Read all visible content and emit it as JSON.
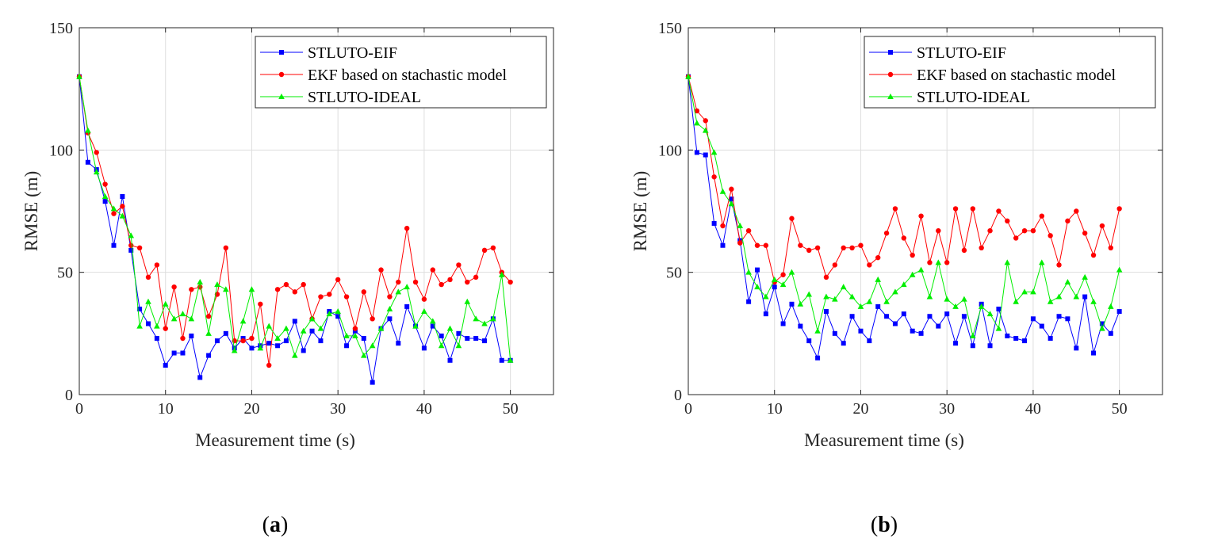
{
  "chart_data": [
    {
      "type": "line",
      "caption_letter": "a",
      "xlabel": "Measurement time (s)",
      "ylabel": "RMSE (m)",
      "xlim": [
        0,
        55
      ],
      "ylim": [
        0,
        150
      ],
      "xticks": [
        0,
        10,
        20,
        30,
        40,
        50
      ],
      "yticks": [
        0,
        50,
        100,
        150
      ],
      "grid": true,
      "legend_position": "top-right",
      "series": [
        {
          "name": "STLUTO-EIF",
          "color": "#0000ff",
          "marker": "square",
          "x": [
            0,
            1,
            2,
            3,
            4,
            5,
            6,
            7,
            8,
            9,
            10,
            11,
            12,
            13,
            14,
            15,
            16,
            17,
            18,
            19,
            20,
            21,
            22,
            23,
            24,
            25,
            26,
            27,
            28,
            29,
            30,
            31,
            32,
            33,
            34,
            35,
            36,
            37,
            38,
            39,
            40,
            41,
            42,
            43,
            44,
            45,
            46,
            47,
            48,
            49,
            50
          ],
          "values": [
            130,
            95,
            92,
            79,
            61,
            81,
            59,
            35,
            29,
            23,
            12,
            17,
            17,
            24,
            7,
            16,
            22,
            25,
            19,
            23,
            19,
            20,
            21,
            20,
            22,
            30,
            18,
            26,
            22,
            34,
            32,
            20,
            26,
            23,
            5,
            27,
            31,
            21,
            36,
            28,
            19,
            28,
            24,
            14,
            25,
            23,
            23,
            22,
            31,
            14,
            14
          ]
        },
        {
          "name": "EKF based on stachastic model",
          "color": "#ff0000",
          "marker": "circle",
          "x": [
            0,
            1,
            2,
            3,
            4,
            5,
            6,
            7,
            8,
            9,
            10,
            11,
            12,
            13,
            14,
            15,
            16,
            17,
            18,
            19,
            20,
            21,
            22,
            23,
            24,
            25,
            26,
            27,
            28,
            29,
            30,
            31,
            32,
            33,
            34,
            35,
            36,
            37,
            38,
            39,
            40,
            41,
            42,
            43,
            44,
            45,
            46,
            47,
            48,
            49,
            50
          ],
          "values": [
            130,
            107,
            99,
            86,
            74,
            77,
            61,
            60,
            48,
            53,
            27,
            44,
            23,
            43,
            44,
            32,
            41,
            60,
            22,
            22,
            23,
            37,
            12,
            43,
            45,
            42,
            45,
            31,
            40,
            41,
            47,
            40,
            27,
            42,
            31,
            51,
            40,
            46,
            68,
            46,
            39,
            51,
            45,
            47,
            53,
            46,
            48,
            59,
            60,
            50,
            46
          ]
        },
        {
          "name": "STLUTO-IDEAL",
          "color": "#00ee00",
          "marker": "triangle",
          "x": [
            0,
            1,
            2,
            3,
            4,
            5,
            6,
            7,
            8,
            9,
            10,
            11,
            12,
            13,
            14,
            15,
            16,
            17,
            18,
            19,
            20,
            21,
            22,
            23,
            24,
            25,
            26,
            27,
            28,
            29,
            30,
            31,
            32,
            33,
            34,
            35,
            36,
            37,
            38,
            39,
            40,
            41,
            42,
            43,
            44,
            45,
            46,
            47,
            48,
            49,
            50
          ],
          "values": [
            130,
            108,
            91,
            81,
            76,
            73,
            65,
            28,
            38,
            28,
            37,
            31,
            33,
            31,
            46,
            25,
            45,
            43,
            18,
            30,
            43,
            19,
            28,
            23,
            27,
            16,
            26,
            31,
            27,
            33,
            34,
            24,
            24,
            16,
            20,
            27,
            35,
            42,
            44,
            28,
            34,
            30,
            20,
            27,
            20,
            38,
            31,
            29,
            31,
            49,
            14
          ]
        }
      ]
    },
    {
      "type": "line",
      "caption_letter": "b",
      "xlabel": "Measurement time (s)",
      "ylabel": "RMSE (m)",
      "xlim": [
        0,
        55
      ],
      "ylim": [
        0,
        150
      ],
      "xticks": [
        0,
        10,
        20,
        30,
        40,
        50
      ],
      "yticks": [
        0,
        50,
        100,
        150
      ],
      "grid": true,
      "legend_position": "top-right",
      "series": [
        {
          "name": "STLUTO-EIF",
          "color": "#0000ff",
          "marker": "square",
          "x": [
            0,
            1,
            2,
            3,
            4,
            5,
            6,
            7,
            8,
            9,
            10,
            11,
            12,
            13,
            14,
            15,
            16,
            17,
            18,
            19,
            20,
            21,
            22,
            23,
            24,
            25,
            26,
            27,
            28,
            29,
            30,
            31,
            32,
            33,
            34,
            35,
            36,
            37,
            38,
            39,
            40,
            41,
            42,
            43,
            44,
            45,
            46,
            47,
            48,
            49,
            50
          ],
          "values": [
            130,
            99,
            98,
            70,
            61,
            80,
            63,
            38,
            51,
            33,
            44,
            29,
            37,
            28,
            22,
            15,
            34,
            25,
            21,
            32,
            26,
            22,
            36,
            32,
            29,
            33,
            26,
            25,
            32,
            28,
            33,
            21,
            32,
            20,
            37,
            20,
            35,
            24,
            23,
            22,
            31,
            28,
            23,
            32,
            31,
            19,
            40,
            17,
            29,
            25,
            34
          ]
        },
        {
          "name": "EKF based on stachastic model",
          "color": "#ff0000",
          "marker": "circle",
          "x": [
            0,
            1,
            2,
            3,
            4,
            5,
            6,
            7,
            8,
            9,
            10,
            11,
            12,
            13,
            14,
            15,
            16,
            17,
            18,
            19,
            20,
            21,
            22,
            23,
            24,
            25,
            26,
            27,
            28,
            29,
            30,
            31,
            32,
            33,
            34,
            35,
            36,
            37,
            38,
            39,
            40,
            41,
            42,
            43,
            44,
            45,
            46,
            47,
            48,
            49,
            50
          ],
          "values": [
            130,
            116,
            112,
            89,
            69,
            84,
            62,
            67,
            61,
            61,
            46,
            49,
            72,
            61,
            59,
            60,
            48,
            53,
            60,
            60,
            61,
            53,
            56,
            66,
            76,
            64,
            57,
            73,
            54,
            67,
            54,
            76,
            59,
            76,
            60,
            67,
            75,
            71,
            64,
            67,
            67,
            73,
            65,
            53,
            71,
            75,
            66,
            57,
            69,
            60,
            76
          ]
        },
        {
          "name": "STLUTO-IDEAL",
          "color": "#00ee00",
          "marker": "triangle",
          "x": [
            0,
            1,
            2,
            3,
            4,
            5,
            6,
            7,
            8,
            9,
            10,
            11,
            12,
            13,
            14,
            15,
            16,
            17,
            18,
            19,
            20,
            21,
            22,
            23,
            24,
            25,
            26,
            27,
            28,
            29,
            30,
            31,
            32,
            33,
            34,
            35,
            36,
            37,
            38,
            39,
            40,
            41,
            42,
            43,
            44,
            45,
            46,
            47,
            48,
            49,
            50
          ],
          "values": [
            130,
            111,
            108,
            99,
            83,
            78,
            69,
            50,
            44,
            40,
            47,
            45,
            50,
            37,
            41,
            26,
            40,
            39,
            44,
            40,
            36,
            38,
            47,
            38,
            42,
            45,
            49,
            51,
            40,
            54,
            39,
            36,
            39,
            24,
            36,
            33,
            27,
            54,
            38,
            42,
            42,
            54,
            38,
            40,
            46,
            40,
            48,
            38,
            27,
            36,
            51
          ]
        }
      ]
    }
  ]
}
